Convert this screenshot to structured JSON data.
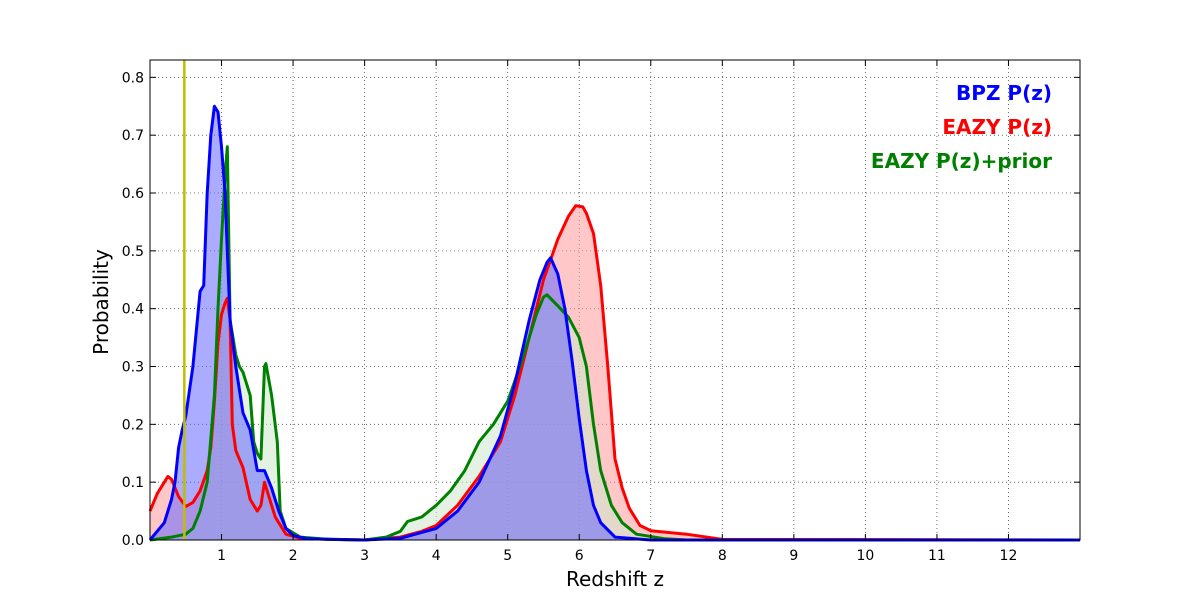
{
  "chart_data": {
    "type": "area",
    "xlabel": "Redshift z",
    "ylabel": "Probability",
    "xlim": [
      0,
      13
    ],
    "ylim": [
      0,
      0.83
    ],
    "x_ticks": [
      1,
      2,
      3,
      4,
      5,
      6,
      7,
      8,
      9,
      10,
      11,
      12
    ],
    "y_ticks": [
      0.0,
      0.1,
      0.2,
      0.3,
      0.4,
      0.5,
      0.6,
      0.7,
      0.8
    ],
    "y_tick_labels": [
      "0.0",
      "0.1",
      "0.2",
      "0.3",
      "0.4",
      "0.5",
      "0.6",
      "0.7",
      "0.8"
    ],
    "grid": true,
    "legend_position": "top-right",
    "reference_line": {
      "x": 0.48,
      "color": "#bfbf00"
    },
    "series": [
      {
        "name": "EAZY P(z)",
        "color": "#ff0000",
        "fill": "#ff9999",
        "points": [
          [
            0,
            0.05
          ],
          [
            0.1,
            0.08
          ],
          [
            0.2,
            0.1
          ],
          [
            0.25,
            0.11
          ],
          [
            0.3,
            0.105
          ],
          [
            0.4,
            0.075
          ],
          [
            0.5,
            0.058
          ],
          [
            0.6,
            0.065
          ],
          [
            0.7,
            0.085
          ],
          [
            0.8,
            0.12
          ],
          [
            0.85,
            0.16
          ],
          [
            0.9,
            0.24
          ],
          [
            0.95,
            0.34
          ],
          [
            1.0,
            0.39
          ],
          [
            1.05,
            0.41
          ],
          [
            1.08,
            0.418
          ],
          [
            1.12,
            0.38
          ],
          [
            1.15,
            0.2
          ],
          [
            1.2,
            0.155
          ],
          [
            1.3,
            0.125
          ],
          [
            1.4,
            0.07
          ],
          [
            1.5,
            0.05
          ],
          [
            1.55,
            0.06
          ],
          [
            1.6,
            0.1
          ],
          [
            1.65,
            0.08
          ],
          [
            1.75,
            0.04
          ],
          [
            1.9,
            0.01
          ],
          [
            2.1,
            0.003
          ],
          [
            2.5,
            0.001
          ],
          [
            3.0,
            0.0
          ],
          [
            3.5,
            0.005
          ],
          [
            3.8,
            0.015
          ],
          [
            4.0,
            0.025
          ],
          [
            4.3,
            0.06
          ],
          [
            4.6,
            0.11
          ],
          [
            4.9,
            0.17
          ],
          [
            5.1,
            0.25
          ],
          [
            5.3,
            0.35
          ],
          [
            5.5,
            0.45
          ],
          [
            5.7,
            0.52
          ],
          [
            5.85,
            0.56
          ],
          [
            5.95,
            0.578
          ],
          [
            6.05,
            0.576
          ],
          [
            6.1,
            0.565
          ],
          [
            6.2,
            0.53
          ],
          [
            6.3,
            0.44
          ],
          [
            6.4,
            0.3
          ],
          [
            6.5,
            0.14
          ],
          [
            6.6,
            0.09
          ],
          [
            6.7,
            0.055
          ],
          [
            6.85,
            0.025
          ],
          [
            7.0,
            0.016
          ],
          [
            7.5,
            0.01
          ],
          [
            8.0,
            0.001
          ],
          [
            13.0,
            0.0
          ]
        ]
      },
      {
        "name": "EAZY P(z)+prior",
        "color": "#008000",
        "fill": "#cce8cc",
        "points": [
          [
            0,
            0.0
          ],
          [
            0.3,
            0.005
          ],
          [
            0.5,
            0.01
          ],
          [
            0.6,
            0.02
          ],
          [
            0.7,
            0.05
          ],
          [
            0.8,
            0.1
          ],
          [
            0.9,
            0.25
          ],
          [
            0.95,
            0.4
          ],
          [
            1.0,
            0.52
          ],
          [
            1.05,
            0.63
          ],
          [
            1.08,
            0.68
          ],
          [
            1.12,
            0.38
          ],
          [
            1.2,
            0.32
          ],
          [
            1.25,
            0.3
          ],
          [
            1.3,
            0.29
          ],
          [
            1.4,
            0.25
          ],
          [
            1.45,
            0.17
          ],
          [
            1.5,
            0.15
          ],
          [
            1.55,
            0.14
          ],
          [
            1.6,
            0.3
          ],
          [
            1.62,
            0.305
          ],
          [
            1.7,
            0.25
          ],
          [
            1.78,
            0.17
          ],
          [
            1.82,
            0.05
          ],
          [
            1.9,
            0.02
          ],
          [
            2.1,
            0.005
          ],
          [
            2.5,
            0.001
          ],
          [
            3.0,
            0.0
          ],
          [
            3.3,
            0.005
          ],
          [
            3.5,
            0.015
          ],
          [
            3.6,
            0.032
          ],
          [
            3.8,
            0.04
          ],
          [
            4.0,
            0.06
          ],
          [
            4.2,
            0.085
          ],
          [
            4.4,
            0.12
          ],
          [
            4.6,
            0.17
          ],
          [
            4.8,
            0.2
          ],
          [
            5.0,
            0.24
          ],
          [
            5.2,
            0.31
          ],
          [
            5.4,
            0.39
          ],
          [
            5.5,
            0.42
          ],
          [
            5.55,
            0.424
          ],
          [
            5.7,
            0.405
          ],
          [
            5.85,
            0.385
          ],
          [
            6.0,
            0.35
          ],
          [
            6.1,
            0.3
          ],
          [
            6.2,
            0.2
          ],
          [
            6.3,
            0.12
          ],
          [
            6.45,
            0.06
          ],
          [
            6.6,
            0.03
          ],
          [
            6.8,
            0.01
          ],
          [
            7.2,
            0.002
          ],
          [
            7.5,
            0.0
          ],
          [
            13.0,
            0.0
          ]
        ]
      },
      {
        "name": "BPZ P(z)",
        "color": "#0000ff",
        "fill": "#6666ff",
        "points": [
          [
            0,
            0.0
          ],
          [
            0.2,
            0.03
          ],
          [
            0.3,
            0.07
          ],
          [
            0.35,
            0.1
          ],
          [
            0.4,
            0.16
          ],
          [
            0.45,
            0.19
          ],
          [
            0.5,
            0.215
          ],
          [
            0.6,
            0.3
          ],
          [
            0.7,
            0.43
          ],
          [
            0.75,
            0.44
          ],
          [
            0.8,
            0.6
          ],
          [
            0.85,
            0.7
          ],
          [
            0.9,
            0.75
          ],
          [
            0.95,
            0.74
          ],
          [
            1.0,
            0.68
          ],
          [
            1.05,
            0.6
          ],
          [
            1.08,
            0.5
          ],
          [
            1.12,
            0.38
          ],
          [
            1.2,
            0.3
          ],
          [
            1.3,
            0.22
          ],
          [
            1.4,
            0.19
          ],
          [
            1.5,
            0.12
          ],
          [
            1.6,
            0.12
          ],
          [
            1.7,
            0.09
          ],
          [
            1.8,
            0.05
          ],
          [
            1.9,
            0.02
          ],
          [
            2.0,
            0.008
          ],
          [
            2.2,
            0.002
          ],
          [
            3.0,
            0.0
          ],
          [
            3.5,
            0.003
          ],
          [
            4.0,
            0.02
          ],
          [
            4.3,
            0.05
          ],
          [
            4.6,
            0.1
          ],
          [
            4.9,
            0.18
          ],
          [
            5.1,
            0.27
          ],
          [
            5.3,
            0.38
          ],
          [
            5.45,
            0.45
          ],
          [
            5.55,
            0.48
          ],
          [
            5.6,
            0.488
          ],
          [
            5.7,
            0.46
          ],
          [
            5.8,
            0.4
          ],
          [
            5.9,
            0.31
          ],
          [
            6.0,
            0.21
          ],
          [
            6.1,
            0.12
          ],
          [
            6.2,
            0.06
          ],
          [
            6.3,
            0.03
          ],
          [
            6.5,
            0.005
          ],
          [
            7.0,
            0.0
          ],
          [
            13.0,
            0.0
          ]
        ]
      }
    ]
  }
}
